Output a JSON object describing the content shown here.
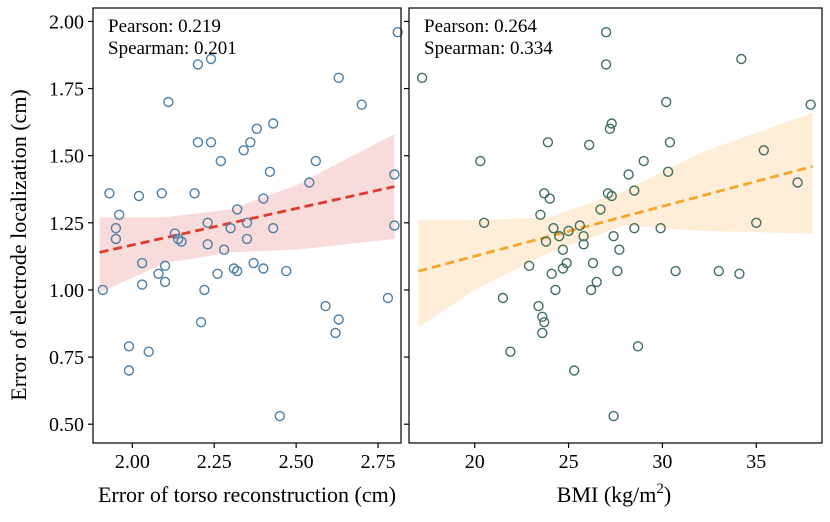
{
  "colors": {
    "left_marker": "#4a7fa8",
    "left_band": "#f4c8c8",
    "left_line": "#e03a2f",
    "right_marker": "#3f6f60",
    "right_band": "#fde3c2",
    "right_line": "#f5a52a"
  },
  "ylabel": "Error of electrode localization (cm)",
  "chart_data": [
    {
      "type": "scatter",
      "name": "torso",
      "xlabel": "Error of torso reconstruction (cm)",
      "ylabel": "Error of electrode localization (cm)",
      "xlim": [
        1.88,
        2.82
      ],
      "ylim": [
        0.43,
        2.05
      ],
      "xticks": [
        2.0,
        2.25,
        2.5,
        2.75
      ],
      "xtick_labels": [
        "2.00",
        "2.25",
        "2.50",
        "2.75"
      ],
      "yticks": [
        0.5,
        0.75,
        1.0,
        1.25,
        1.5,
        1.75,
        2.0
      ],
      "ytick_labels": [
        "0.50",
        "0.75",
        "1.00",
        "1.25",
        "1.50",
        "1.75",
        "2.00"
      ],
      "annotations": [
        "Pearson: 0.219",
        "Spearman: 0.201"
      ],
      "fit_line": {
        "x": [
          1.9,
          2.8
        ],
        "y": [
          1.14,
          1.385
        ]
      },
      "ci_band": {
        "x": [
          1.9,
          2.1,
          2.3,
          2.5,
          2.8
        ],
        "upper": [
          1.27,
          1.27,
          1.3,
          1.39,
          1.58
        ],
        "lower": [
          0.99,
          1.1,
          1.14,
          1.15,
          1.19
        ]
      },
      "points": [
        [
          1.91,
          1.0
        ],
        [
          1.93,
          1.36
        ],
        [
          1.95,
          1.23
        ],
        [
          1.95,
          1.19
        ],
        [
          1.96,
          1.28
        ],
        [
          1.99,
          0.79
        ],
        [
          1.99,
          0.7
        ],
        [
          2.02,
          1.35
        ],
        [
          2.03,
          1.1
        ],
        [
          2.03,
          1.02
        ],
        [
          2.05,
          0.77
        ],
        [
          2.08,
          1.06
        ],
        [
          2.09,
          1.36
        ],
        [
          2.1,
          1.03
        ],
        [
          2.1,
          1.09
        ],
        [
          2.11,
          1.7
        ],
        [
          2.13,
          1.21
        ],
        [
          2.14,
          1.19
        ],
        [
          2.15,
          1.18
        ],
        [
          2.19,
          1.36
        ],
        [
          2.2,
          1.84
        ],
        [
          2.2,
          1.55
        ],
        [
          2.21,
          0.88
        ],
        [
          2.22,
          1.0
        ],
        [
          2.23,
          1.25
        ],
        [
          2.23,
          1.17
        ],
        [
          2.24,
          1.55
        ],
        [
          2.24,
          1.86
        ],
        [
          2.26,
          1.06
        ],
        [
          2.27,
          1.48
        ],
        [
          2.28,
          1.15
        ],
        [
          2.3,
          1.23
        ],
        [
          2.31,
          1.08
        ],
        [
          2.32,
          1.07
        ],
        [
          2.32,
          1.3
        ],
        [
          2.34,
          1.52
        ],
        [
          2.35,
          1.19
        ],
        [
          2.35,
          1.25
        ],
        [
          2.36,
          1.55
        ],
        [
          2.37,
          1.1
        ],
        [
          2.38,
          1.6
        ],
        [
          2.4,
          1.34
        ],
        [
          2.4,
          1.08
        ],
        [
          2.42,
          1.44
        ],
        [
          2.43,
          1.62
        ],
        [
          2.43,
          1.23
        ],
        [
          2.45,
          0.53
        ],
        [
          2.47,
          1.07
        ],
        [
          2.54,
          1.4
        ],
        [
          2.56,
          1.48
        ],
        [
          2.59,
          0.94
        ],
        [
          2.62,
          0.84
        ],
        [
          2.63,
          1.79
        ],
        [
          2.63,
          0.89
        ],
        [
          2.7,
          1.69
        ],
        [
          2.78,
          0.97
        ],
        [
          2.8,
          1.43
        ],
        [
          2.8,
          1.24
        ],
        [
          2.81,
          1.96
        ]
      ]
    },
    {
      "type": "scatter",
      "name": "bmi",
      "xlabel": "BMI (kg/m",
      "xlabel_sup": "2",
      "xlabel_end": ")",
      "xlim": [
        16.5,
        38.5
      ],
      "ylim": [
        0.43,
        2.05
      ],
      "xticks": [
        20,
        25,
        30,
        35
      ],
      "xtick_labels": [
        "20",
        "25",
        "30",
        "35"
      ],
      "annotations": [
        "Pearson: 0.264",
        "Spearman: 0.334"
      ],
      "fit_line": {
        "x": [
          17.0,
          38.0
        ],
        "y": [
          1.07,
          1.46
        ]
      },
      "ci_band": {
        "x": [
          17.0,
          20.0,
          24.0,
          28.0,
          32.0,
          38.0
        ],
        "upper": [
          1.26,
          1.26,
          1.27,
          1.37,
          1.51,
          1.66
        ],
        "lower": [
          0.86,
          1.0,
          1.14,
          1.24,
          1.22,
          1.21
        ]
      },
      "points": [
        [
          17.2,
          1.79
        ],
        [
          20.3,
          1.48
        ],
        [
          20.5,
          1.25
        ],
        [
          21.5,
          0.97
        ],
        [
          21.9,
          0.77
        ],
        [
          22.9,
          1.09
        ],
        [
          23.4,
          0.94
        ],
        [
          23.5,
          1.28
        ],
        [
          23.6,
          0.9
        ],
        [
          23.6,
          0.84
        ],
        [
          23.7,
          0.88
        ],
        [
          23.7,
          1.36
        ],
        [
          23.8,
          1.18
        ],
        [
          23.9,
          1.55
        ],
        [
          24.0,
          1.34
        ],
        [
          24.1,
          1.06
        ],
        [
          24.2,
          1.23
        ],
        [
          24.3,
          1.0
        ],
        [
          24.5,
          1.2
        ],
        [
          24.7,
          1.08
        ],
        [
          24.7,
          1.15
        ],
        [
          24.9,
          1.1
        ],
        [
          25.0,
          1.22
        ],
        [
          25.3,
          0.7
        ],
        [
          25.6,
          1.24
        ],
        [
          25.8,
          1.2
        ],
        [
          25.8,
          1.17
        ],
        [
          26.1,
          1.54
        ],
        [
          26.2,
          1.0
        ],
        [
          26.3,
          1.1
        ],
        [
          26.5,
          1.03
        ],
        [
          26.7,
          1.3
        ],
        [
          27.0,
          1.84
        ],
        [
          27.0,
          1.96
        ],
        [
          27.1,
          1.36
        ],
        [
          27.2,
          1.6
        ],
        [
          27.3,
          1.62
        ],
        [
          27.3,
          1.35
        ],
        [
          27.4,
          0.53
        ],
        [
          27.4,
          1.2
        ],
        [
          27.6,
          1.07
        ],
        [
          27.7,
          1.15
        ],
        [
          28.2,
          1.43
        ],
        [
          28.5,
          1.23
        ],
        [
          28.5,
          1.37
        ],
        [
          28.7,
          0.79
        ],
        [
          29.0,
          1.48
        ],
        [
          29.9,
          1.23
        ],
        [
          30.2,
          1.7
        ],
        [
          30.3,
          1.44
        ],
        [
          30.4,
          1.55
        ],
        [
          30.7,
          1.07
        ],
        [
          33.0,
          1.07
        ],
        [
          34.1,
          1.06
        ],
        [
          34.2,
          1.86
        ],
        [
          35.0,
          1.25
        ],
        [
          35.4,
          1.52
        ],
        [
          37.2,
          1.4
        ],
        [
          37.9,
          1.69
        ]
      ]
    }
  ]
}
